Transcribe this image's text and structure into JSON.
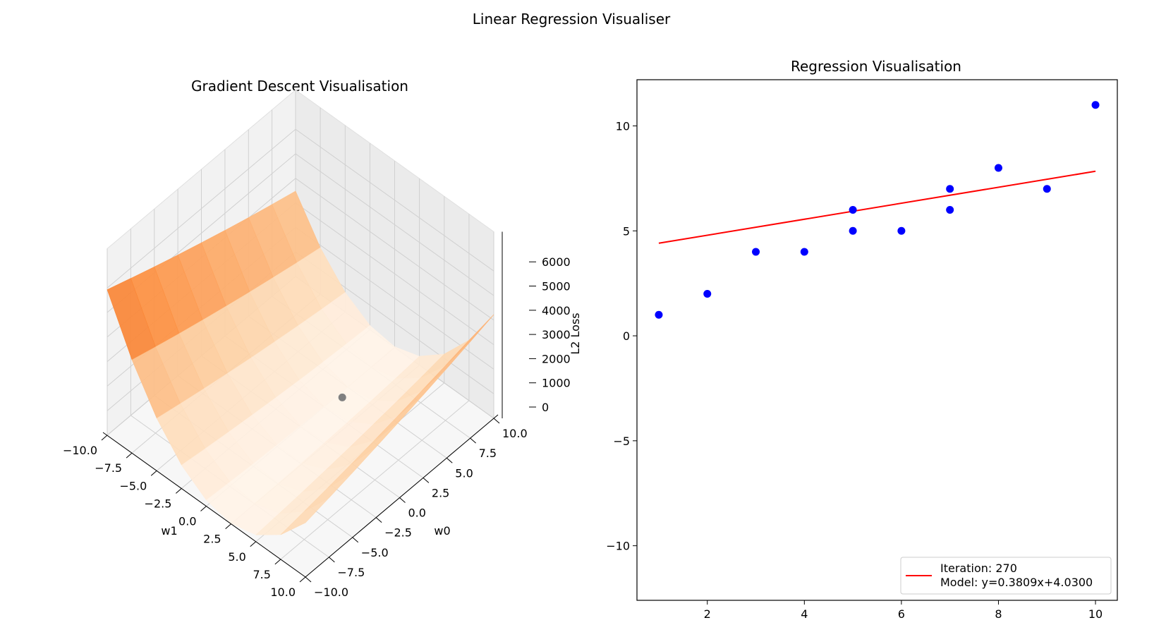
{
  "figure": {
    "title": "Linear Regression Visualiser"
  },
  "chart_data": [
    {
      "type": "surface",
      "title": "Gradient Descent Visualisation",
      "xlabel": "w1",
      "ylabel": "w0",
      "zlabel": "L2 Loss",
      "x_ticks": [
        "−10.0",
        "−7.5",
        "−5.0",
        "−2.5",
        "0.0",
        "2.5",
        "5.0",
        "7.5",
        "10.0"
      ],
      "y_ticks": [
        "−10.0",
        "−7.5",
        "−5.0",
        "−2.5",
        "0.0",
        "2.5",
        "5.0",
        "7.5",
        "10.0"
      ],
      "z_ticks": [
        "0",
        "1000",
        "2000",
        "3000",
        "4000",
        "5000",
        "6000"
      ],
      "xlim": [
        -10,
        10
      ],
      "ylim": [
        -10,
        10
      ],
      "zlim": [
        0,
        6000
      ],
      "colormap": "Oranges",
      "current_point": {
        "w0": 4.03,
        "w1": 0.3809,
        "loss": 1.2
      },
      "point_color": "#808080"
    },
    {
      "type": "scatter",
      "title": "Regression Visualisation",
      "xlabel": "",
      "ylabel": "",
      "x_ticks": [
        "2",
        "4",
        "6",
        "8",
        "10"
      ],
      "x_tick_values": [
        2,
        4,
        6,
        8,
        10
      ],
      "y_ticks": [
        "−10",
        "−5",
        "0",
        "5",
        "10"
      ],
      "y_tick_values": [
        -10,
        -5,
        0,
        5,
        10
      ],
      "xlim": [
        0.55,
        10.45
      ],
      "ylim": [
        -12.6,
        12.2
      ],
      "points": {
        "x": [
          1,
          2,
          3,
          4,
          5,
          5,
          6,
          7,
          7,
          8,
          9,
          10
        ],
        "y": [
          1,
          2,
          4,
          4,
          5,
          6,
          5,
          6,
          7,
          8,
          7,
          11
        ],
        "color": "#0000ff"
      },
      "line": {
        "slope": 0.3809,
        "intercept": 4.03,
        "x_range": [
          1,
          10
        ],
        "color": "#ff0000"
      },
      "legend": {
        "position": "lower-right",
        "lines": [
          "Iteration: 270",
          "Model: y=0.3809x+4.0300"
        ]
      }
    }
  ]
}
